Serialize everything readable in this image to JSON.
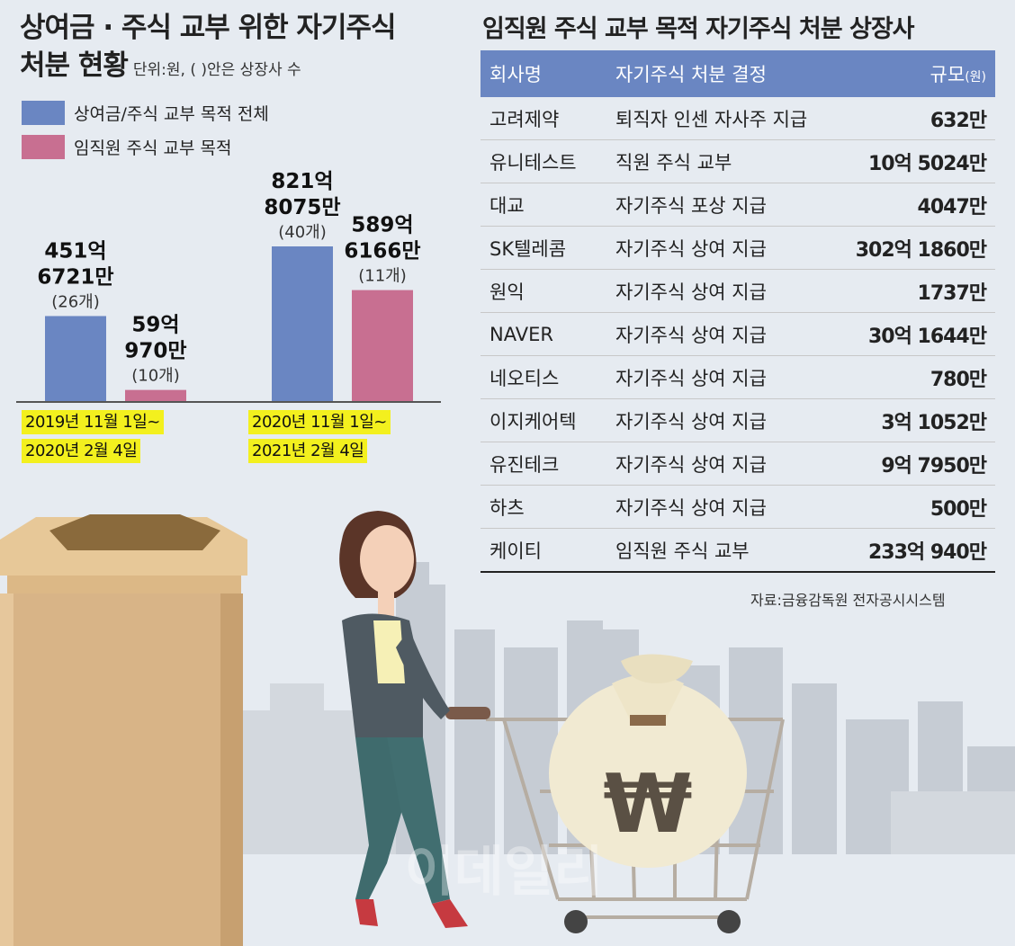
{
  "left": {
    "title_line1": "상여금 · 주식 교부 위한 자기주식",
    "title_line2": "처분 현황",
    "unit": "단위:원, ( )안은 상장사 수",
    "legend": [
      {
        "label": "상여금/주식 교부 목적 전체",
        "color": "#6a86c2"
      },
      {
        "label": "임직원 주식 교부 목적",
        "color": "#c86f91"
      }
    ],
    "periods": [
      {
        "line1": "2019년 11월 1일~",
        "line2": "2020년 2월 4일"
      },
      {
        "line1": "2020년 11월 1일~",
        "line2": "2021년 2월 4일"
      }
    ]
  },
  "chart_data": {
    "type": "bar",
    "title": "상여금 · 주식 교부 위한 자기주식 처분 현황",
    "unit": "단위:원, ( )안은 상장사 수",
    "categories": [
      "2019년 11월 1일~2020년 2월 4일",
      "2020년 11월 1일~2021년 2월 4일"
    ],
    "series": [
      {
        "name": "상여금/주식 교부 목적 전체",
        "color": "#6a86c2",
        "values": [
          45167210000,
          82180750000
        ],
        "labels": [
          [
            "451억",
            "6721만"
          ],
          [
            "821억",
            "8075만"
          ]
        ],
        "counts": [
          "(26개)",
          "(40개)"
        ]
      },
      {
        "name": "임직원 주식 교부 목적",
        "color": "#c86f91",
        "values": [
          5909700000,
          58961660000
        ],
        "labels": [
          [
            "59억",
            "970만"
          ],
          [
            "589억",
            "6166만"
          ]
        ],
        "counts": [
          "(10개)",
          "(11개)"
        ]
      }
    ],
    "ylim": [
      0,
      82180750000
    ]
  },
  "table": {
    "title": "임직원 주식 교부 목적 자기주식 처분 상장사",
    "headers": {
      "company": "회사명",
      "decision": "자기주식 처분 결정",
      "scale": "규모",
      "scale_unit": "(원)"
    },
    "rows": [
      {
        "company": "고려제약",
        "decision": "퇴직자 인센 자사주 지급",
        "amount": "632만"
      },
      {
        "company": "유니테스트",
        "decision": "직원 주식 교부",
        "amount": "10억 5024만"
      },
      {
        "company": "대교",
        "decision": "자기주식 포상 지급",
        "amount": "4047만"
      },
      {
        "company": "SK텔레콤",
        "decision": "자기주식 상여 지급",
        "amount": "302억 1860만"
      },
      {
        "company": "원익",
        "decision": "자기주식 상여 지급",
        "amount": "1737만"
      },
      {
        "company": "NAVER",
        "decision": "자기주식 상여 지급",
        "amount": "30억 1644만"
      },
      {
        "company": "네오티스",
        "decision": "자기주식 상여 지급",
        "amount": "780만"
      },
      {
        "company": "이지케어텍",
        "decision": "자기주식 상여 지급",
        "amount": "3억 1052만"
      },
      {
        "company": "유진테크",
        "decision": "자기주식 상여 지급",
        "amount": "9억 7950만"
      },
      {
        "company": "하츠",
        "decision": "자기주식 상여 지급",
        "amount": "500만"
      },
      {
        "company": "케이티",
        "decision": "임직원 주식 교부",
        "amount": "233억 940만"
      }
    ]
  },
  "source": "자료:금융감독원 전자공시시스템",
  "watermark": "이데일리",
  "illustration": {
    "icon": "money-bag-won-icon",
    "symbol": "₩"
  }
}
